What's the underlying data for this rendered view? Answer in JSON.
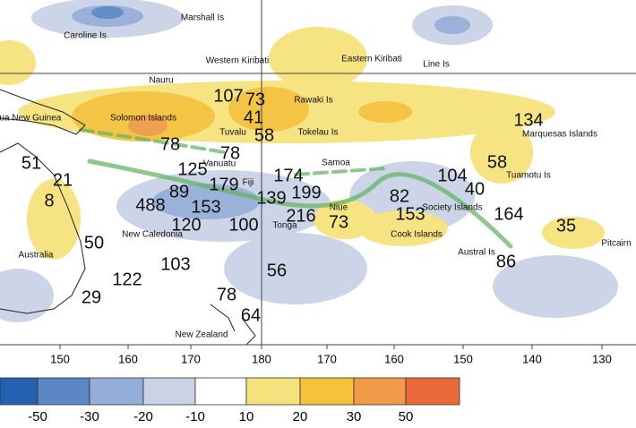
{
  "map": {
    "places": [
      "Marshall Is",
      "Caroline Is",
      "Western Kiribati",
      "Eastern Kiribati",
      "Line Is",
      "Nauru",
      "Papua New Guinea",
      "Solomon Islands",
      "Tuvalu",
      "Rawaki Is",
      "Tokelau Is",
      "Marquesas Islands",
      "Samoa",
      "Vanuatu",
      "Fiji",
      "Tuamotu Is",
      "Society Islands",
      "New Caledonia",
      "Tonga",
      "Niue",
      "Cook Islands",
      "Austral Is",
      "Pitcairn",
      "Australia",
      "New Zealand"
    ],
    "stations": [
      107,
      73,
      41,
      58,
      78,
      134,
      51,
      21,
      8,
      78,
      125,
      174,
      89,
      179,
      139,
      199,
      104,
      58,
      40,
      82,
      488,
      153,
      100,
      216,
      73,
      153,
      164,
      35,
      120,
      50,
      86,
      103,
      122,
      56,
      29,
      78,
      64
    ],
    "longitude_labels": [
      150,
      160,
      170,
      180,
      170,
      160,
      150,
      140,
      130
    ],
    "legend": {
      "colors": [
        "#2461b0",
        "#5b87c5",
        "#95aed9",
        "#cad3e6",
        "#ffffff",
        "#f6e27c",
        "#f4c23b",
        "#f09a48",
        "#e9693b"
      ],
      "labels": [
        -50,
        -30,
        -20,
        -10,
        10,
        20,
        30,
        50
      ]
    }
  }
}
